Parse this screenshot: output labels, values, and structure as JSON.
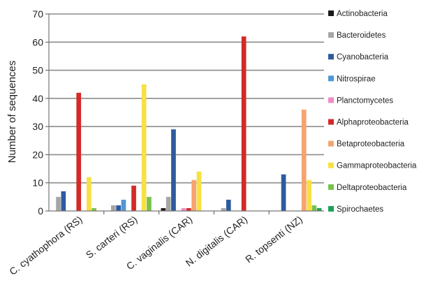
{
  "chart_data": {
    "type": "bar",
    "title": "",
    "xlabel": "",
    "ylabel": "Number of sequences",
    "ylim": [
      0,
      70
    ],
    "yticks": [
      0,
      10,
      20,
      30,
      40,
      50,
      60,
      70
    ],
    "grid": true,
    "legend_position": "right",
    "categories": [
      "C. cyathophora (RS)",
      "S. carteri (RS)",
      "C. vaginalis (CAR)",
      "N. digitalis (CAR)",
      "R. topsenti (NZ)"
    ],
    "series": [
      {
        "name": "Actinobacteria",
        "color": "#1a1a1a",
        "values": [
          0,
          0,
          1,
          0,
          0
        ]
      },
      {
        "name": "Bacteroidetes",
        "color": "#a6a6a6",
        "values": [
          5,
          2,
          5,
          1,
          0
        ]
      },
      {
        "name": "Cyanobacteria",
        "color": "#2e5a9e",
        "values": [
          7,
          2,
          29,
          4,
          13
        ]
      },
      {
        "name": "Nitrospirae",
        "color": "#4f97d6",
        "values": [
          0,
          4,
          0,
          0,
          0
        ]
      },
      {
        "name": "Planctomycetes",
        "color": "#f08cc4",
        "values": [
          0,
          0,
          1,
          0,
          0
        ]
      },
      {
        "name": "Alphaproteobacteria",
        "color": "#d42a27",
        "values": [
          42,
          9,
          1,
          62,
          0
        ]
      },
      {
        "name": "Betaproteobacteria",
        "color": "#f5a46f",
        "values": [
          0,
          0,
          11,
          0,
          36
        ]
      },
      {
        "name": "Gammaproteobacteria",
        "color": "#f7e043",
        "values": [
          12,
          45,
          14,
          0,
          11
        ]
      },
      {
        "name": "Deltaproteobacteria",
        "color": "#79c24a",
        "values": [
          1,
          5,
          0,
          0,
          2
        ]
      },
      {
        "name": "Spirochaetes",
        "color": "#1ea05a",
        "values": [
          0,
          0,
          0,
          0,
          1
        ]
      }
    ]
  }
}
